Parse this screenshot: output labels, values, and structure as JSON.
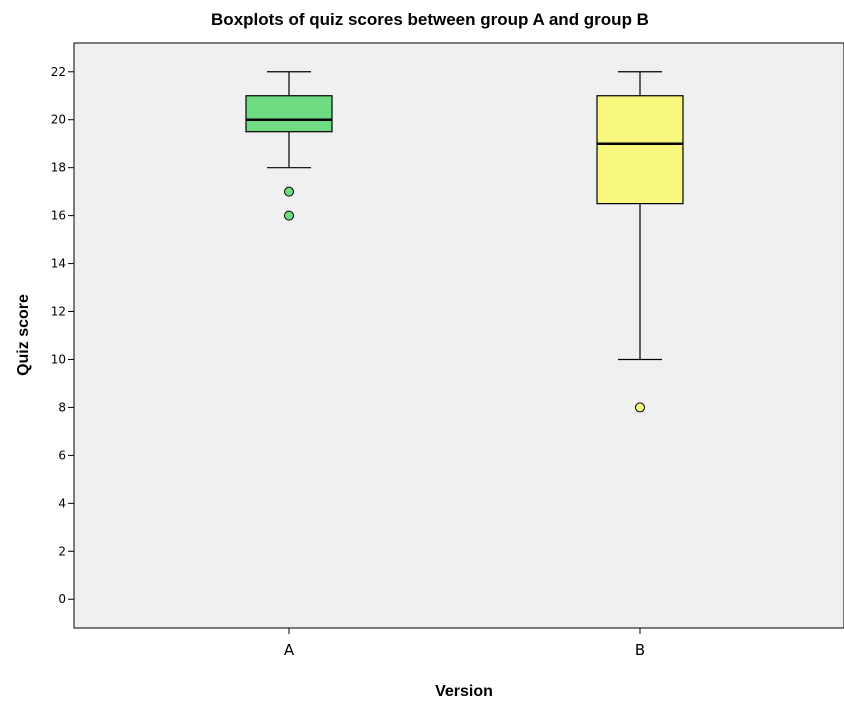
{
  "chart_data": {
    "type": "box",
    "title": "Boxplots of quiz scores between group A and group B",
    "xlabel": "Version",
    "ylabel": "Quiz score",
    "ylim": [
      -1.2,
      23.2
    ],
    "yticks": [
      0,
      2,
      4,
      6,
      8,
      10,
      12,
      14,
      16,
      18,
      20,
      22
    ],
    "ytick_labels": [
      "0",
      "2",
      "4",
      "6",
      "8",
      "10",
      "12",
      "14",
      "16",
      "18",
      "20",
      "22"
    ],
    "categories": [
      "A",
      "B"
    ],
    "grid": false,
    "plot_background": "#f0f0f0",
    "boxes": [
      {
        "category": "A",
        "whisker_low": 18,
        "q1": 19.5,
        "median": 20,
        "q3": 21,
        "whisker_high": 22,
        "outliers": [
          17,
          16
        ],
        "color": "#6fdc84"
      },
      {
        "category": "B",
        "whisker_low": 10,
        "q1": 16.5,
        "median": 19,
        "q3": 21,
        "whisker_high": 22,
        "outliers": [
          8
        ],
        "color": "#f8f77e"
      }
    ]
  }
}
